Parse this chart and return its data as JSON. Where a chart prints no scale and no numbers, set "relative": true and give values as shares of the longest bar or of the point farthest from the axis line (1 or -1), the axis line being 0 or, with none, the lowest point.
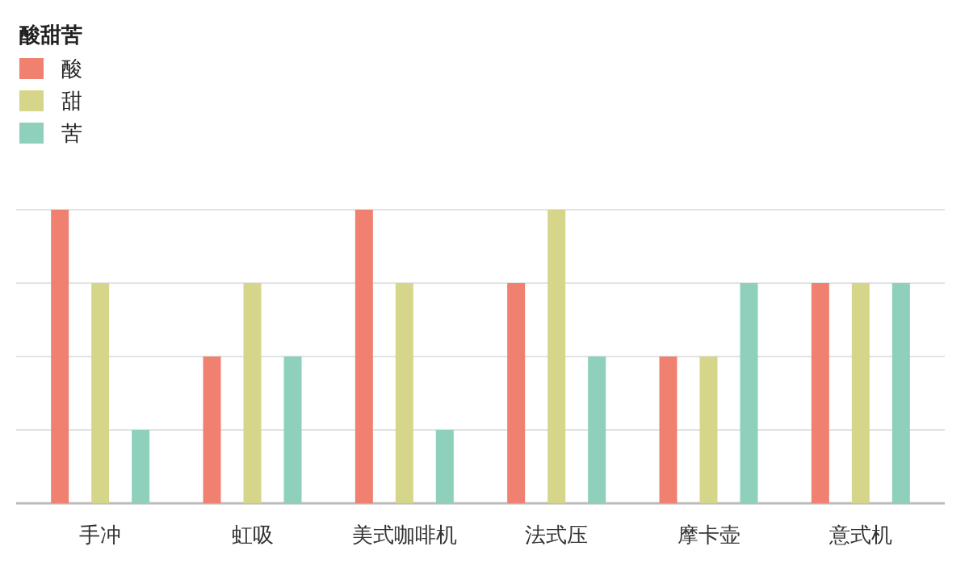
{
  "chart_data": {
    "type": "bar",
    "relative": true,
    "legend_title": "酸甜苦",
    "legend": "top left",
    "grid": "y",
    "categories": [
      "手冲",
      "虹吸",
      "美式咖啡机",
      "法式压",
      "摩卡壶",
      "意式机"
    ],
    "series": [
      {
        "name": "酸",
        "color": "#f08070",
        "values": [
          1,
          0.5,
          1,
          0.75,
          0.5,
          0.75
        ]
      },
      {
        "name": "甜",
        "color": "#d6d68a",
        "values": [
          0.75,
          0.75,
          0.75,
          1,
          0.5,
          0.75
        ]
      },
      {
        "name": "苦",
        "color": "#8ed0bc",
        "values": [
          0.25,
          0.5,
          0.25,
          0.5,
          0.75,
          0.75
        ]
      }
    ]
  }
}
